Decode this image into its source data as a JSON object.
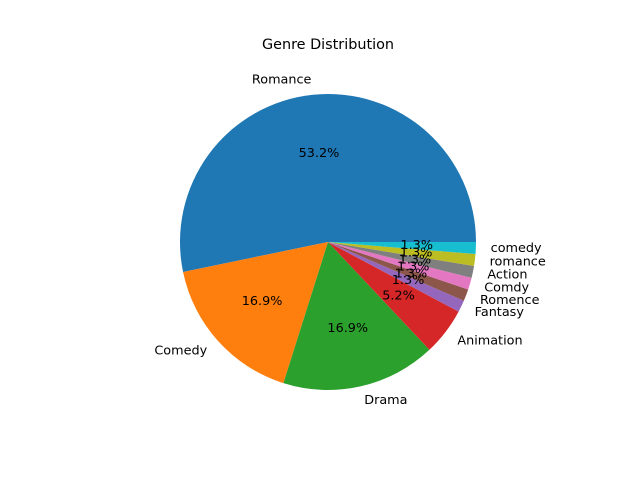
{
  "chart_data": {
    "type": "pie",
    "title": "Genre Distribution",
    "categories": [
      "Romance",
      "Comedy",
      "Drama",
      "Animation",
      "Fantasy",
      "Romence",
      "Comdy",
      "Action",
      "romance",
      "comedy"
    ],
    "values": [
      41,
      13,
      13,
      4,
      1,
      1,
      1,
      1,
      1,
      1
    ],
    "percent_labels": [
      "53.2%",
      "16.9%",
      "16.9%",
      "5.2%",
      "1.3%",
      "1.3%",
      "1.3%",
      "1.3%",
      "1.3%",
      "1.3%"
    ],
    "colors": [
      "#1f77b4",
      "#ff7f0e",
      "#2ca02c",
      "#d62728",
      "#9467bd",
      "#8c564b",
      "#e377c2",
      "#7f7f7f",
      "#bcbd22",
      "#17becf"
    ],
    "start_angle_deg": 0,
    "direction": "counterclockwise",
    "legend": "none"
  }
}
